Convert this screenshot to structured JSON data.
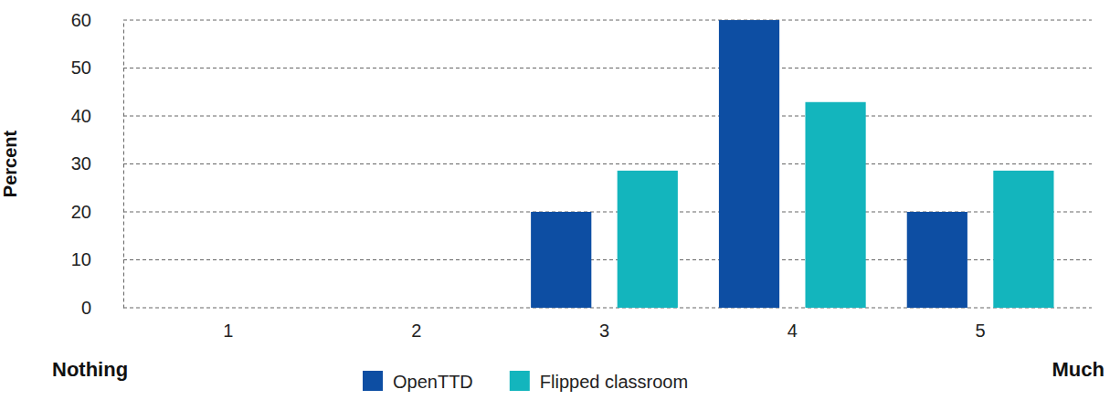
{
  "chart_data": {
    "type": "bar",
    "y_label": "Percent",
    "categories": [
      "1",
      "2",
      "3",
      "4",
      "5"
    ],
    "series": [
      {
        "name": "OpenTTD",
        "color": "#0d4ea3",
        "values": [
          0,
          0,
          20,
          60,
          20
        ]
      },
      {
        "name": "Flipped classroom",
        "color": "#13b5bd",
        "values": [
          0,
          0,
          28.6,
          42.9,
          28.6
        ]
      }
    ],
    "annotations": [
      "Nothing",
      "Much"
    ],
    "ylim": [
      0,
      60
    ],
    "yticks": [
      0,
      10,
      20,
      30,
      40,
      50,
      60
    ],
    "grid": true,
    "legend": "bottom"
  }
}
